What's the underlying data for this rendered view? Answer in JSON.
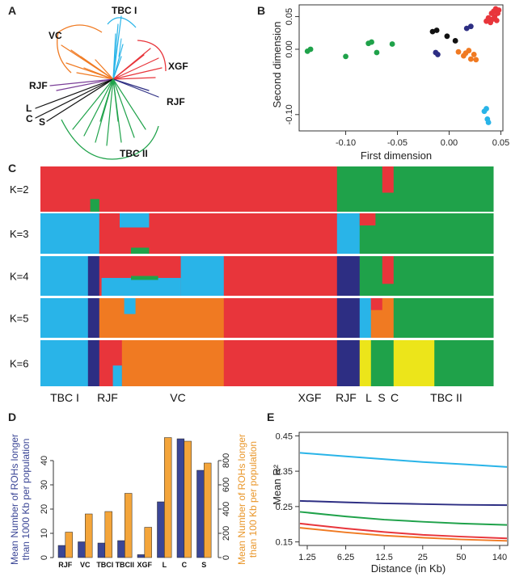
{
  "panel_labels": {
    "a": "A",
    "b": "B",
    "c": "C",
    "d": "D",
    "e": "E"
  },
  "colors": {
    "red": "#e8353b",
    "green": "#1fa24a",
    "sky": "#29b4e8",
    "navy": "#2d2e83",
    "orange": "#f07a22",
    "yellow": "#ece51a",
    "black": "#111111",
    "bar_orange": "#f4a53a",
    "bar_navy": "#3b4696"
  },
  "tree": {
    "labels": {
      "tbc1": "TBC I",
      "vc": "VC",
      "xgf": "XGF",
      "rjf_left": "RJF",
      "rjf_right": "RJF",
      "l": "L",
      "c": "C",
      "s": "S",
      "tbc2": "TBC II"
    }
  },
  "chart_data": [
    {
      "panel": "B",
      "type": "scatter",
      "xlabel": "First dimension",
      "ylabel": "Second dimension",
      "xlim": [
        -0.145,
        0.052
      ],
      "ylim": [
        -0.125,
        0.068
      ],
      "xticks": [
        "-0.10",
        "-0.05",
        "0.00",
        "0.05"
      ],
      "xtick_values": [
        -0.1,
        -0.05,
        0.0,
        0.05
      ],
      "yticks": [
        "0.05",
        "0.00",
        "-0.10"
      ],
      "ytick_values": [
        0.05,
        0.0,
        -0.1
      ],
      "series": [
        {
          "color": "green",
          "points": [
            [
              -0.137,
              -0.003
            ],
            [
              -0.134,
              0.0
            ],
            [
              -0.1,
              -0.011
            ],
            [
              -0.078,
              0.009
            ],
            [
              -0.075,
              0.011
            ],
            [
              -0.07,
              -0.005
            ],
            [
              -0.055,
              0.008
            ]
          ]
        },
        {
          "color": "black",
          "points": [
            [
              -0.016,
              0.027
            ],
            [
              -0.012,
              0.029
            ],
            [
              0.006,
              0.013
            ],
            [
              -0.002,
              0.02
            ]
          ]
        },
        {
          "color": "navy",
          "points": [
            [
              -0.013,
              -0.005
            ],
            [
              -0.011,
              -0.008
            ],
            [
              0.017,
              0.032
            ],
            [
              0.021,
              0.035
            ]
          ]
        },
        {
          "color": "orange",
          "points": [
            [
              0.009,
              -0.004
            ],
            [
              0.014,
              -0.01
            ],
            [
              0.016,
              -0.006
            ],
            [
              0.019,
              -0.002
            ],
            [
              0.021,
              -0.015
            ],
            [
              0.024,
              -0.008
            ],
            [
              0.026,
              -0.016
            ]
          ]
        },
        {
          "color": "red",
          "points": [
            [
              0.036,
              0.043
            ],
            [
              0.038,
              0.048
            ],
            [
              0.04,
              0.041
            ],
            [
              0.041,
              0.055
            ],
            [
              0.042,
              0.046
            ],
            [
              0.043,
              0.058
            ],
            [
              0.044,
              0.05
            ],
            [
              0.045,
              0.062
            ],
            [
              0.046,
              0.044
            ],
            [
              0.047,
              0.055
            ],
            [
              0.048,
              0.06
            ]
          ]
        },
        {
          "color": "sky",
          "points": [
            [
              0.034,
              -0.095
            ],
            [
              0.036,
              -0.091
            ],
            [
              0.037,
              -0.107
            ],
            [
              0.038,
              -0.112
            ]
          ]
        }
      ]
    },
    {
      "panel": "C",
      "type": "bar",
      "k_labels": [
        "K=2",
        "K=3",
        "K=4",
        "K=5",
        "K=6"
      ],
      "group_labels": [
        "TBC I",
        "RJF",
        "VC",
        "XGF",
        "RJF",
        "L",
        "S",
        "C",
        "TBC II"
      ]
    },
    {
      "panel": "D",
      "type": "bar",
      "categories": [
        "RJF",
        "VC",
        "TBCI",
        "TBCII",
        "XGF",
        "L",
        "C",
        "S"
      ],
      "ylabel_left": "Mean Number of ROHs longer than 1000 Kb per population",
      "ylabel_right": "Mean Number of ROHs longer than 100 Kb per population",
      "ylim_left": [
        0,
        50
      ],
      "ylim_right": [
        0,
        1000
      ],
      "yticks_left": [
        "0",
        "10",
        "20",
        "30",
        "40"
      ],
      "yticks_right": [
        "0",
        "200",
        "400",
        "600",
        "800"
      ],
      "series": [
        {
          "name": "",
          "axis": "left",
          "color": "bar_navy",
          "values": [
            5,
            6.5,
            6,
            7,
            1.2,
            23,
            49,
            36
          ]
        },
        {
          "name": "",
          "axis": "right",
          "color": "bar_orange",
          "values": [
            210,
            360,
            380,
            530,
            250,
            990,
            960,
            780
          ]
        }
      ]
    },
    {
      "panel": "E",
      "type": "line",
      "xlabel": "Distance (in Kb)",
      "ylabel": "Mean R²",
      "xticks": [
        "1.25",
        "6.25",
        "12.5",
        "25",
        "50",
        "140"
      ],
      "ylim": [
        0.14,
        0.46
      ],
      "yticks": [
        "0.15",
        "0.25",
        "0.35",
        "0.45"
      ],
      "ytick_values": [
        0.15,
        0.25,
        0.35,
        0.45
      ],
      "series": [
        {
          "color": "sky",
          "values": [
            0.402,
            0.392,
            0.384,
            0.376,
            0.37,
            0.362
          ]
        },
        {
          "color": "navy",
          "values": [
            0.266,
            0.262,
            0.259,
            0.257,
            0.255,
            0.254
          ]
        },
        {
          "color": "green",
          "values": [
            0.235,
            0.222,
            0.213,
            0.207,
            0.202,
            0.198
          ]
        },
        {
          "color": "red",
          "values": [
            0.202,
            0.188,
            0.178,
            0.17,
            0.165,
            0.16
          ]
        },
        {
          "color": "orange",
          "values": [
            0.19,
            0.177,
            0.168,
            0.162,
            0.157,
            0.153
          ]
        }
      ]
    }
  ]
}
